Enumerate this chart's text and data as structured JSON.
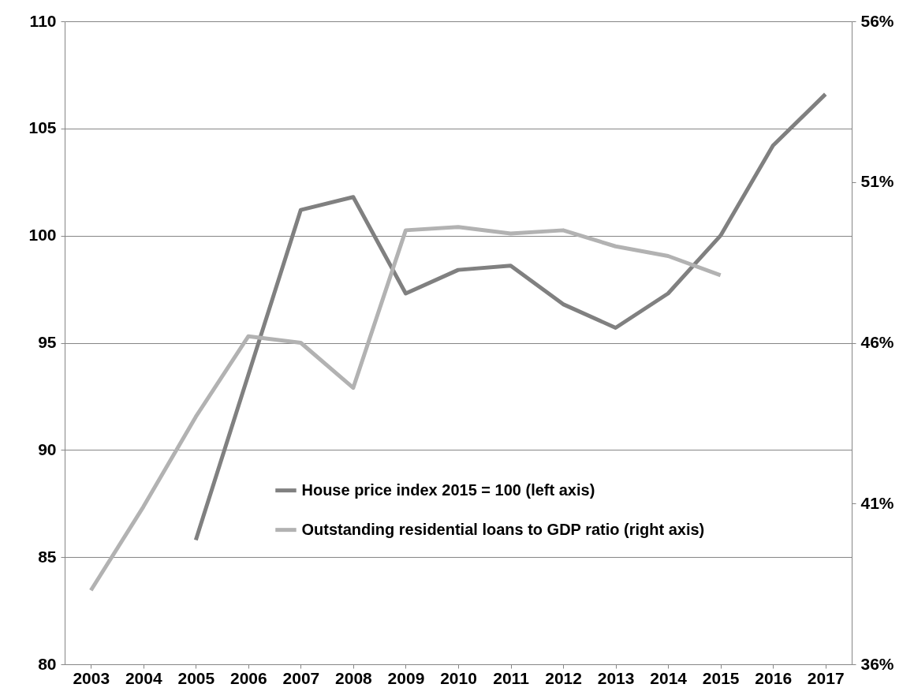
{
  "chart_data": {
    "type": "line",
    "categories": [
      "2003",
      "2004",
      "2005",
      "2006",
      "2007",
      "2008",
      "2009",
      "2010",
      "2011",
      "2012",
      "2013",
      "2014",
      "2015",
      "2016",
      "2017"
    ],
    "series": [
      {
        "name": "House price index 2015 = 100 (left axis)",
        "color": "#808080",
        "values": [
          null,
          null,
          85.8,
          93.5,
          101.2,
          101.8,
          97.3,
          98.4,
          98.6,
          96.8,
          95.7,
          97.3,
          100,
          104.2,
          106.6
        ]
      },
      {
        "name": "Outstanding residential loans to GDP ratio (right axis)",
        "color": "#b2b2b2",
        "axis": "y2",
        "values": [
          38.3,
          40.9,
          43.7,
          46.2,
          46.0,
          44.6,
          49.5,
          49.6,
          49.4,
          49.5,
          49.0,
          48.7,
          48.1,
          null,
          null
        ]
      }
    ],
    "ylim": [
      80,
      110
    ],
    "yticks": [
      80,
      85,
      90,
      95,
      100,
      105,
      110
    ],
    "y2lim": [
      36,
      56
    ],
    "y2ticks": [
      {
        "value": 36,
        "label": "36%"
      },
      {
        "value": 41,
        "label": "41%"
      },
      {
        "value": 46,
        "label": "46%"
      },
      {
        "value": 51,
        "label": "51%"
      },
      {
        "value": 56,
        "label": "56%"
      }
    ],
    "grid": "y",
    "legend": "center",
    "line_style": "solid",
    "marker": "none"
  }
}
